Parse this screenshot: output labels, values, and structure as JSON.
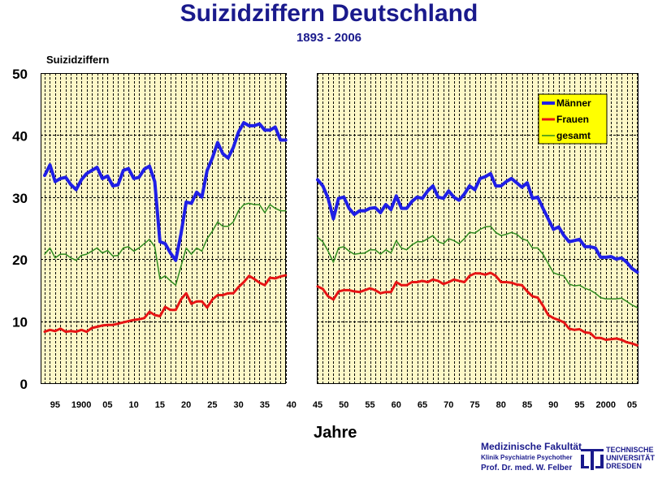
{
  "header": {
    "title": "Suizidziffern Deutschland",
    "subtitle": "1893 - 2006"
  },
  "footer": {
    "faculty": "Medizinische Fakultät",
    "clinic": "Klinik Psychiatrie Psychother",
    "professor": "Prof. Dr. med. W. Felber",
    "university_lines": [
      "TECHNISCHE",
      "UNIVERSITÄT",
      "DRESDEN"
    ]
  },
  "colors": {
    "plot_bg": "#fdf8c8",
    "title": "#1a1a8c",
    "maenner": "#1f1fe6",
    "frauen": "#e61414",
    "gesamt": "#2e8b1e",
    "legend_bg": "#ffff00"
  },
  "chart_data": {
    "type": "line",
    "title": "Suizidziffern Deutschland",
    "subtitle": "1893 - 2006",
    "ylabel": "Suizidziffern",
    "xlabel": "Jahre",
    "ylim": [
      0,
      50
    ],
    "yticks": [
      0,
      10,
      20,
      30,
      40,
      50
    ],
    "xlim": [
      1893,
      2006
    ],
    "gap": [
      1939,
      1945
    ],
    "xtick_values": [
      1895,
      1900,
      1905,
      1910,
      1915,
      1920,
      1925,
      1930,
      1935,
      1940,
      1945,
      1950,
      1955,
      1960,
      1965,
      1970,
      1975,
      1980,
      1985,
      1990,
      1995,
      2000,
      2005
    ],
    "xtick_labels": [
      "95",
      "1900",
      "05",
      "10",
      "15",
      "20",
      "25",
      "30",
      "35",
      "40",
      "45",
      "50",
      "55",
      "60",
      "65",
      "70",
      "75",
      "80",
      "85",
      "90",
      "95",
      "2000",
      "05"
    ],
    "grid": true,
    "legend_position": "top-right",
    "series": [
      {
        "name": "Männer",
        "color": "#1f1fe6",
        "segments": [
          {
            "x": [
              1893,
              1894,
              1895,
              1896,
              1897,
              1898,
              1899,
              1900,
              1901,
              1902,
              1903,
              1904,
              1905,
              1906,
              1907,
              1908,
              1909,
              1910,
              1911,
              1912,
              1913,
              1914,
              1915,
              1916,
              1917,
              1918,
              1919,
              1920,
              1921,
              1922,
              1923,
              1924,
              1925,
              1926,
              1927,
              1928,
              1929,
              1930,
              1931,
              1932,
              1933,
              1934,
              1935,
              1936,
              1937,
              1938,
              1939
            ],
            "y": [
              33.5,
              35.2,
              32.5,
              33.0,
              33.2,
              32.0,
              31.2,
              32.8,
              33.8,
              34.3,
              34.8,
              33.0,
              33.4,
              31.8,
              32.0,
              34.3,
              34.6,
              33.0,
              33.2,
              34.5,
              35.0,
              32.5,
              22.8,
              22.5,
              21.0,
              19.8,
              24.0,
              29.2,
              29.0,
              30.8,
              30.0,
              34.3,
              36.3,
              38.8,
              37.0,
              36.3,
              38.0,
              40.5,
              42.0,
              41.5,
              41.5,
              41.8,
              40.8,
              40.8,
              41.3,
              39.2,
              39.2
            ]
          },
          {
            "x": [
              1945,
              1946,
              1947,
              1948,
              1949,
              1950,
              1951,
              1952,
              1953,
              1954,
              1955,
              1956,
              1957,
              1958,
              1959,
              1960,
              1961,
              1962,
              1963,
              1964,
              1965,
              1966,
              1967,
              1968,
              1969,
              1970,
              1971,
              1972,
              1973,
              1974,
              1975,
              1976,
              1977,
              1978,
              1979,
              1980,
              1981,
              1982,
              1983,
              1984,
              1985,
              1986,
              1987,
              1988,
              1989,
              1990,
              1991,
              1992,
              1993,
              1994,
              1995,
              1996,
              1997,
              1998,
              1999,
              2000,
              2001,
              2002,
              2003,
              2004,
              2005,
              2006
            ],
            "y": [
              32.8,
              31.8,
              29.8,
              26.5,
              29.8,
              30.0,
              28.2,
              27.2,
              27.8,
              27.8,
              28.2,
              28.3,
              27.5,
              28.8,
              28.0,
              30.2,
              28.2,
              28.2,
              29.3,
              30.0,
              29.8,
              31.0,
              31.8,
              30.0,
              29.8,
              31.0,
              30.0,
              29.5,
              30.5,
              31.8,
              31.2,
              33.0,
              33.3,
              33.8,
              31.8,
              31.8,
              32.5,
              33.0,
              32.3,
              31.6,
              32.3,
              29.8,
              30.0,
              28.2,
              26.5,
              24.8,
              25.2,
              23.8,
              22.8,
              23.0,
              23.2,
              22.0,
              22.0,
              21.8,
              20.3,
              20.3,
              20.4,
              20.0,
              20.2,
              19.5,
              18.5,
              17.9
            ]
          }
        ]
      },
      {
        "name": "Frauen",
        "color": "#e61414",
        "segments": [
          {
            "x": [
              1893,
              1894,
              1895,
              1896,
              1897,
              1898,
              1899,
              1900,
              1901,
              1902,
              1903,
              1904,
              1905,
              1906,
              1907,
              1908,
              1909,
              1910,
              1911,
              1912,
              1913,
              1914,
              1915,
              1916,
              1917,
              1918,
              1919,
              1920,
              1921,
              1922,
              1923,
              1924,
              1925,
              1926,
              1927,
              1928,
              1929,
              1930,
              1931,
              1932,
              1933,
              1934,
              1935,
              1936,
              1937,
              1938,
              1939
            ],
            "y": [
              8.3,
              8.6,
              8.4,
              8.8,
              8.3,
              8.4,
              8.3,
              8.6,
              8.3,
              8.9,
              9.1,
              9.3,
              9.4,
              9.4,
              9.6,
              9.8,
              10.0,
              10.2,
              10.3,
              10.5,
              11.5,
              11.0,
              10.8,
              12.3,
              11.8,
              11.8,
              13.5,
              14.5,
              12.8,
              13.2,
              13.2,
              12.2,
              13.5,
              14.2,
              14.2,
              14.5,
              14.5,
              15.5,
              16.3,
              17.3,
              16.8,
              16.2,
              15.8,
              17.0,
              16.9,
              17.2,
              17.4
            ]
          },
          {
            "x": [
              1945,
              1946,
              1947,
              1948,
              1949,
              1950,
              1951,
              1952,
              1953,
              1954,
              1955,
              1956,
              1957,
              1958,
              1959,
              1960,
              1961,
              1962,
              1963,
              1964,
              1965,
              1966,
              1967,
              1968,
              1969,
              1970,
              1971,
              1972,
              1973,
              1974,
              1975,
              1976,
              1977,
              1978,
              1979,
              1980,
              1981,
              1982,
              1983,
              1984,
              1985,
              1986,
              1987,
              1988,
              1989,
              1990,
              1991,
              1992,
              1993,
              1994,
              1995,
              1996,
              1997,
              1998,
              1999,
              2000,
              2001,
              2002,
              2003,
              2004,
              2005,
              2006
            ],
            "y": [
              15.6,
              15.2,
              14.0,
              13.5,
              14.8,
              15.0,
              15.0,
              14.8,
              14.7,
              15.0,
              15.3,
              15.0,
              14.5,
              14.7,
              14.7,
              16.3,
              15.8,
              15.8,
              16.3,
              16.3,
              16.5,
              16.3,
              16.7,
              16.5,
              16.0,
              16.3,
              16.7,
              16.5,
              16.3,
              17.3,
              17.7,
              17.7,
              17.5,
              17.8,
              17.3,
              16.3,
              16.3,
              16.2,
              15.9,
              15.8,
              14.8,
              14.0,
              13.8,
              12.5,
              11.0,
              10.5,
              10.2,
              9.8,
              8.8,
              8.6,
              8.7,
              8.2,
              8.1,
              7.3,
              7.3,
              7.0,
              7.1,
              7.2,
              7.0,
              6.6,
              6.4,
              6.1
            ]
          }
        ]
      },
      {
        "name": "gesamt",
        "color": "#2e8b1e",
        "segments": [
          {
            "x": [
              1893,
              1894,
              1895,
              1896,
              1897,
              1898,
              1899,
              1900,
              1901,
              1902,
              1903,
              1904,
              1905,
              1906,
              1907,
              1908,
              1909,
              1910,
              1911,
              1912,
              1913,
              1914,
              1915,
              1916,
              1917,
              1918,
              1919,
              1920,
              1921,
              1922,
              1923,
              1924,
              1925,
              1926,
              1927,
              1928,
              1929,
              1930,
              1931,
              1932,
              1933,
              1934,
              1935,
              1936,
              1937,
              1938,
              1939
            ],
            "y": [
              20.8,
              21.8,
              20.2,
              20.8,
              20.8,
              20.2,
              19.8,
              20.6,
              20.8,
              21.3,
              21.8,
              21.0,
              21.4,
              20.5,
              20.6,
              21.8,
              22.0,
              21.3,
              21.8,
              22.5,
              23.2,
              22.0,
              16.8,
              17.3,
              16.5,
              15.8,
              18.8,
              21.8,
              20.8,
              21.8,
              21.3,
              23.3,
              24.5,
              26.0,
              25.3,
              25.3,
              26.0,
              27.8,
              28.8,
              29.0,
              28.8,
              28.8,
              27.5,
              28.8,
              28.2,
              27.8,
              27.8
            ]
          },
          {
            "x": [
              1945,
              1946,
              1947,
              1948,
              1949,
              1950,
              1951,
              1952,
              1953,
              1954,
              1955,
              1956,
              1957,
              1958,
              1959,
              1960,
              1961,
              1962,
              1963,
              1964,
              1965,
              1966,
              1967,
              1968,
              1969,
              1970,
              1971,
              1972,
              1973,
              1974,
              1975,
              1976,
              1977,
              1978,
              1979,
              1980,
              1981,
              1982,
              1983,
              1984,
              1985,
              1986,
              1987,
              1988,
              1989,
              1990,
              1991,
              1992,
              1993,
              1994,
              1995,
              1996,
              1997,
              1998,
              1999,
              2000,
              2001,
              2002,
              2003,
              2004,
              2005,
              2006
            ],
            "y": [
              23.5,
              22.8,
              21.3,
              19.5,
              21.8,
              22.0,
              21.3,
              20.8,
              20.9,
              21.0,
              21.5,
              21.5,
              20.8,
              21.5,
              21.0,
              23.0,
              21.8,
              21.5,
              22.3,
              22.8,
              22.8,
              23.3,
              23.8,
              22.8,
              22.5,
              23.3,
              23.0,
              22.5,
              23.3,
              24.3,
              24.2,
              24.8,
              25.2,
              25.3,
              24.3,
              23.8,
              24.0,
              24.3,
              24.0,
              23.3,
              23.0,
              21.8,
              21.8,
              20.8,
              19.3,
              17.8,
              17.5,
              17.3,
              16.0,
              15.7,
              15.8,
              15.3,
              15.0,
              14.5,
              13.8,
              13.6,
              13.6,
              13.6,
              13.7,
              13.2,
              12.6,
              12.2
            ]
          }
        ]
      }
    ]
  }
}
